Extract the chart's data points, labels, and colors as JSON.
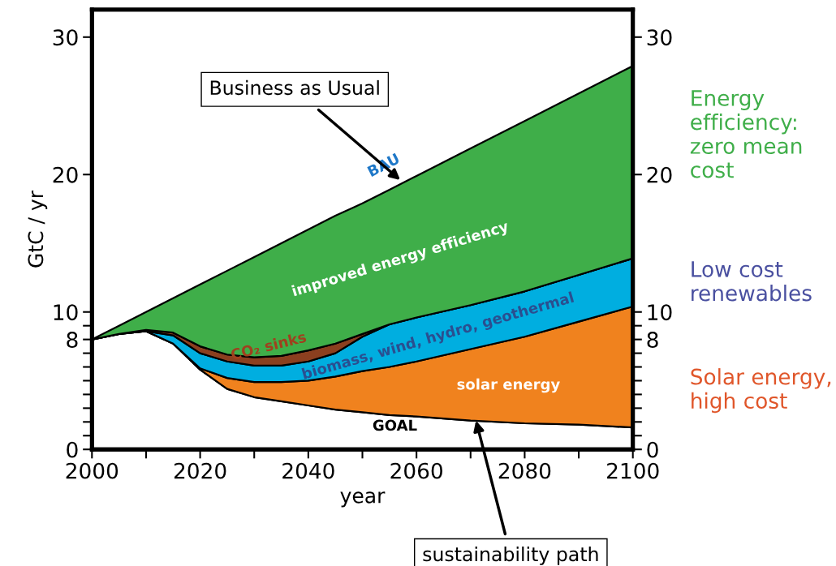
{
  "chart_data": {
    "type": "area",
    "stacked": true,
    "xlabel": "year",
    "ylabel": "GtC / yr",
    "x": [
      2000,
      2005,
      2010,
      2015,
      2020,
      2025,
      2030,
      2035,
      2040,
      2045,
      2050,
      2055,
      2060,
      2070,
      2080,
      2090,
      2100
    ],
    "xlim": [
      2000,
      2100
    ],
    "xticks": [
      2000,
      {
        "value": 2010,
        "label": null
      },
      2020,
      {
        "value": 2030,
        "label": null
      },
      2040,
      {
        "value": 2050,
        "label": null
      },
      2060,
      {
        "value": 2070,
        "label": null
      },
      2080,
      {
        "value": 2090,
        "label": null
      },
      2100
    ],
    "ylim": [
      0,
      32
    ],
    "yticks": [
      0,
      {
        "value": 1,
        "label": null
      },
      {
        "value": 2,
        "label": null
      },
      {
        "value": 3,
        "label": null
      },
      {
        "value": 4,
        "label": null
      },
      {
        "value": 5,
        "label": null
      },
      {
        "value": 6,
        "label": null
      },
      {
        "value": 7,
        "label": null
      },
      8,
      {
        "value": 9,
        "label": null
      },
      10,
      20,
      30
    ],
    "y2lim": [
      0,
      32
    ],
    "y2ticks": [
      0,
      {
        "value": 1,
        "label": null
      },
      {
        "value": 2,
        "label": null
      },
      {
        "value": 3,
        "label": null
      },
      {
        "value": 4,
        "label": null
      },
      {
        "value": 5,
        "label": null
      },
      {
        "value": 6,
        "label": null
      },
      {
        "value": 7,
        "label": null
      },
      8,
      {
        "value": 9,
        "label": null
      },
      10,
      20,
      30
    ],
    "series": [
      {
        "name": "GOAL",
        "color": "#ffffff",
        "values": [
          8.0,
          8.4,
          8.6,
          7.7,
          5.8,
          4.4,
          3.8,
          3.5,
          3.2,
          2.9,
          2.7,
          2.5,
          2.4,
          2.1,
          1.9,
          1.8,
          1.6
        ]
      },
      {
        "name": "solar energy",
        "color": "#f0821e",
        "values": [
          0,
          0,
          0,
          0,
          0.1,
          0.8,
          1.1,
          1.4,
          1.8,
          2.4,
          3.0,
          3.5,
          4.0,
          5.2,
          6.3,
          7.5,
          8.8
        ]
      },
      {
        "name": "biomass, wind, hydro, geothermal",
        "color": "#00aee0",
        "values": [
          0,
          0,
          0,
          0.6,
          1.1,
          1.2,
          1.2,
          1.2,
          1.4,
          1.7,
          2.5,
          3.1,
          3.2,
          3.2,
          3.3,
          3.4,
          3.5
        ]
      },
      {
        "name": "CO₂ sinks",
        "color": "#8b3f1f",
        "values": [
          0,
          0,
          0.1,
          0.2,
          0.5,
          0.5,
          0.6,
          0.7,
          0.8,
          0.7,
          0.2,
          0,
          0,
          0,
          0,
          0,
          0
        ]
      },
      {
        "name": "improved energy efficiency",
        "color": "#3fae49",
        "values": [
          0,
          0.6,
          1.3,
          2.5,
          4.5,
          6.1,
          7.3,
          8.2,
          8.8,
          9.3,
          9.5,
          9.8,
          10.3,
          11.4,
          12.4,
          13.2,
          14.0
        ]
      }
    ],
    "annotations": [
      {
        "text": "Business as Usual",
        "x": 2057,
        "y": 19.6
      },
      {
        "text": "BAU",
        "x": 2054,
        "y": 18.7
      },
      {
        "text": "sustainability path",
        "x": 2071,
        "y": 2.1
      },
      "Energy efficiency: zero mean cost",
      "Low cost renewables",
      "Solar energy, high cost"
    ],
    "grid": false,
    "legend": false
  }
}
